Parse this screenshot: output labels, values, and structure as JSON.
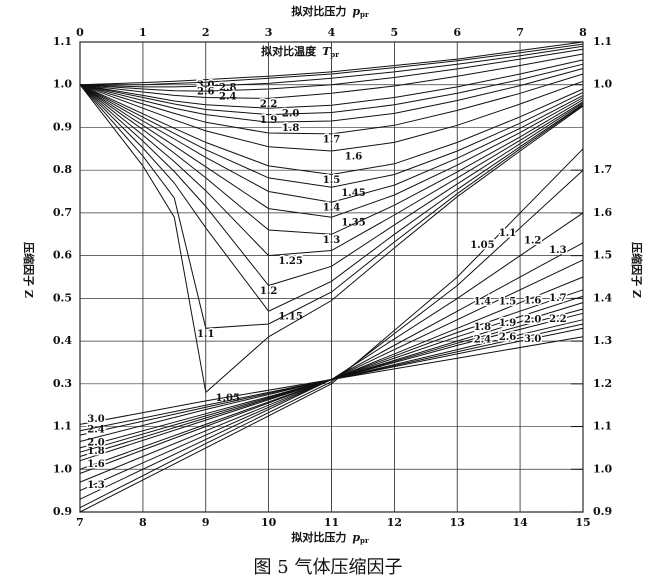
{
  "caption": "图 5 气体压缩因子",
  "chart_data": [
    {
      "type": "line",
      "color": "#111111",
      "grid": true,
      "x_label": "拟对比压力",
      "x_symbol": "p",
      "x_symbol_sub": "pr",
      "legend_title": "拟对比温度",
      "legend_symbol": "T",
      "legend_symbol_sub": "pr",
      "y_label": "压缩因子 Z",
      "y2_label": "压缩因子 Z",
      "xlim": [
        0,
        8
      ],
      "xticks": [
        0,
        1,
        2,
        3,
        4,
        5,
        6,
        7,
        8
      ],
      "ylim": [
        0,
        1.1
      ],
      "yticks": [
        0.3,
        0.4,
        0.5,
        0.6,
        0.7,
        0.8,
        0.9,
        {
          "value": 1,
          "label": "1.0"
        },
        1.1
      ],
      "y2lim": [
        0,
        1.1
      ],
      "y2ticks": [
        {
          "value": 1,
          "label": "1.0"
        },
        1.1
      ],
      "x": [
        0,
        1,
        1.5,
        2,
        3,
        4,
        5,
        6,
        7,
        8
      ],
      "series": [
        {
          "name": "3.0",
          "values": [
            1,
            1.005,
            1.008,
            1.012,
            1.02,
            1.03,
            1.045,
            1.06,
            1.08,
            1.1
          ]
        },
        {
          "name": "2.8",
          "values": [
            1,
            1.0,
            1.003,
            1.006,
            1.015,
            1.025,
            1.04,
            1.056,
            1.075,
            1.095
          ]
        },
        {
          "name": "2.6",
          "values": [
            1,
            0.995,
            0.995,
            0.997,
            1.003,
            1.015,
            1.03,
            1.048,
            1.068,
            1.09
          ]
        },
        {
          "name": "2.4",
          "values": [
            1,
            0.99,
            0.986,
            0.985,
            0.99,
            1.0,
            1.017,
            1.037,
            1.06,
            1.083
          ]
        },
        {
          "name": "2.2",
          "values": [
            1,
            0.983,
            0.975,
            0.97,
            0.968,
            0.98,
            0.997,
            1.02,
            1.045,
            1.072
          ]
        },
        {
          "name": "2.0",
          "values": [
            1,
            0.975,
            0.962,
            0.953,
            0.945,
            0.952,
            0.97,
            0.995,
            1.025,
            1.058
          ]
        },
        {
          "name": "1.9",
          "values": [
            1,
            0.97,
            0.955,
            0.942,
            0.93,
            0.935,
            0.953,
            0.98,
            1.012,
            1.048
          ]
        },
        {
          "name": "1.8",
          "values": [
            1,
            0.963,
            0.945,
            0.93,
            0.912,
            0.915,
            0.933,
            0.963,
            0.998,
            1.038
          ]
        },
        {
          "name": "1.7",
          "values": [
            1,
            0.955,
            0.933,
            0.912,
            0.887,
            0.885,
            0.905,
            0.94,
            0.98,
            1.025
          ]
        },
        {
          "name": "1.6",
          "values": [
            1,
            0.945,
            0.918,
            0.892,
            0.855,
            0.845,
            0.865,
            0.905,
            0.955,
            1.008
          ]
        },
        {
          "name": "1.5",
          "values": [
            1,
            0.932,
            0.898,
            0.865,
            0.81,
            0.79,
            0.815,
            0.865,
            0.925,
            0.99
          ]
        },
        {
          "name": "1.45",
          "values": [
            1,
            0.924,
            0.886,
            0.848,
            0.782,
            0.76,
            0.79,
            0.845,
            0.91,
            0.982
          ]
        },
        {
          "name": "1.4",
          "values": [
            1,
            0.915,
            0.873,
            0.83,
            0.75,
            0.725,
            0.765,
            0.828,
            0.898,
            0.975
          ]
        },
        {
          "name": "1.35",
          "values": [
            1,
            0.905,
            0.857,
            0.808,
            0.71,
            0.69,
            0.742,
            0.812,
            0.888,
            0.97
          ]
        },
        {
          "name": "1.3",
          "values": [
            1,
            0.895,
            0.84,
            0.782,
            0.66,
            0.65,
            0.718,
            0.796,
            0.878,
            0.965
          ]
        },
        {
          "name": "1.25",
          "values": [
            1,
            0.882,
            0.82,
            0.752,
            0.6,
            0.612,
            0.695,
            0.782,
            0.87,
            0.96
          ]
        },
        {
          "name": "1.2",
          "values": [
            1,
            0.868,
            0.797,
            0.715,
            0.53,
            0.575,
            0.672,
            0.768,
            0.862,
            0.957
          ]
        },
        {
          "name": "1.15",
          "values": [
            1,
            0.852,
            0.77,
            0.665,
            0.47,
            0.54,
            0.65,
            0.755,
            0.855,
            0.954
          ]
        },
        {
          "name": "1.1",
          "values": [
            1,
            0.833,
            0.735,
            0.43,
            0.44,
            0.515,
            0.632,
            0.745,
            0.85,
            0.952
          ]
        },
        {
          "name": "1.05",
          "values": [
            1,
            0.81,
            0.69,
            0.28,
            0.41,
            0.495,
            0.618,
            0.738,
            0.845,
            0.95
          ]
        }
      ]
    },
    {
      "type": "line",
      "color": "#111111",
      "grid": true,
      "x_label": "拟对比压力",
      "x_symbol": "p",
      "x_symbol_sub": "pr",
      "xlim": [
        7,
        15
      ],
      "xticks": [
        7,
        8,
        9,
        10,
        11,
        12,
        13,
        14,
        15
      ],
      "ylim": [
        0.9,
        2.0
      ],
      "yticks": [
        0.9,
        {
          "value": 1,
          "label": "1.0"
        },
        1.1
      ],
      "y2lim": [
        0.9,
        2.0
      ],
      "y2ticks": [
        0.9,
        {
          "value": 1,
          "label": "1.0"
        },
        1.1,
        1.2,
        1.3,
        1.4,
        1.5,
        1.6,
        1.7
      ],
      "x": [
        7,
        9,
        11,
        13,
        15
      ],
      "series": [
        {
          "name": "1.05",
          "values": [
            0.9,
            1.05,
            1.2,
            1.45,
            1.75
          ]
        },
        {
          "name": "1.1",
          "values": [
            0.91,
            1.06,
            1.205,
            1.43,
            1.7
          ]
        },
        {
          "name": "1.2",
          "values": [
            0.93,
            1.07,
            1.21,
            1.4,
            1.6
          ]
        },
        {
          "name": "1.3",
          "values": [
            0.95,
            1.08,
            1.21,
            1.37,
            1.53
          ],
          "start_label": true
        },
        {
          "name": "1.4",
          "values": [
            0.97,
            1.09,
            1.21,
            1.35,
            1.49
          ]
        },
        {
          "name": "1.5",
          "values": [
            0.99,
            1.1,
            1.21,
            1.33,
            1.45
          ]
        },
        {
          "name": "1.6",
          "values": [
            1.0,
            1.105,
            1.21,
            1.32,
            1.42
          ],
          "start_label": true
        },
        {
          "name": "1.7",
          "values": [
            1.02,
            1.115,
            1.21,
            1.31,
            1.405
          ]
        },
        {
          "name": "1.8",
          "values": [
            1.03,
            1.12,
            1.21,
            1.3,
            1.39
          ],
          "start_label": true
        },
        {
          "name": "1.9",
          "values": [
            1.04,
            1.125,
            1.21,
            1.295,
            1.375
          ]
        },
        {
          "name": "2.0",
          "values": [
            1.05,
            1.13,
            1.21,
            1.29,
            1.365
          ],
          "start_label": true
        },
        {
          "name": "2.2",
          "values": [
            1.065,
            1.14,
            1.21,
            1.28,
            1.35
          ]
        },
        {
          "name": "2.4",
          "values": [
            1.08,
            1.145,
            1.21,
            1.275,
            1.34
          ],
          "start_label": true
        },
        {
          "name": "2.6",
          "values": [
            1.09,
            1.15,
            1.21,
            1.27,
            1.33
          ]
        },
        {
          "name": "3.0",
          "values": [
            1.105,
            1.16,
            1.21,
            1.26,
            1.31
          ],
          "start_label": true
        }
      ]
    }
  ]
}
